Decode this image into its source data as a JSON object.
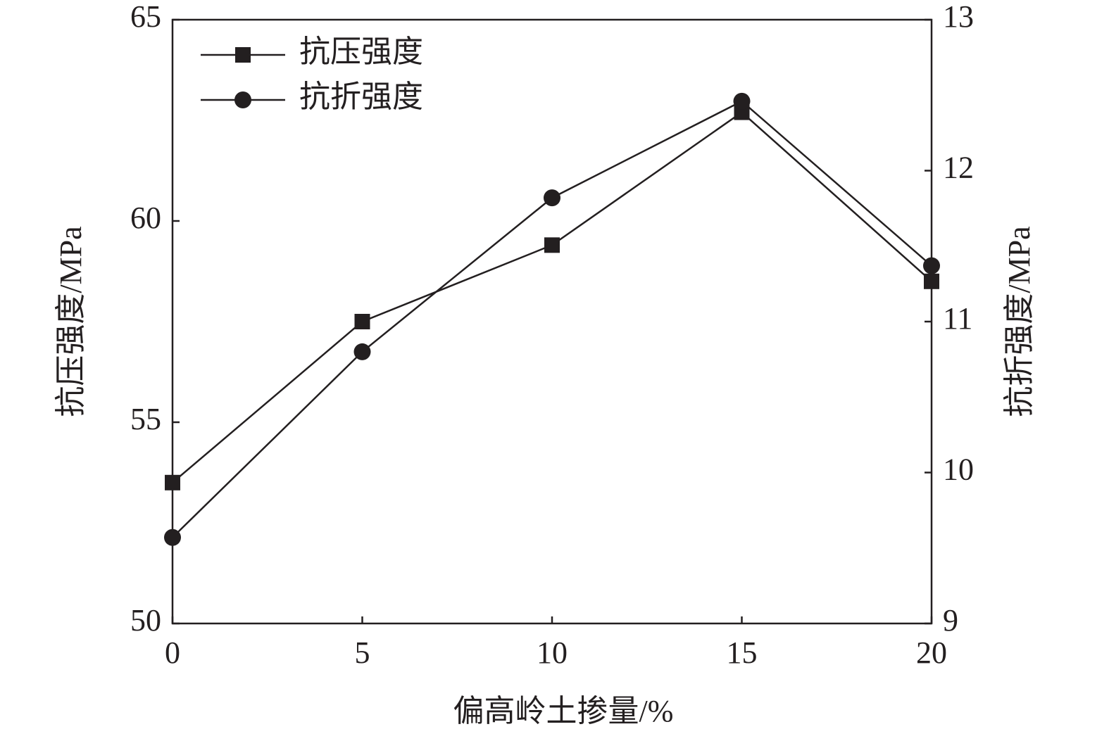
{
  "chart_data": {
    "type": "line",
    "x_label": "偏高岭土掺量/%",
    "y_label": "抗压强度/MPa",
    "y2_label": "抗折强度/MPa",
    "x": [
      0,
      5,
      10,
      15,
      20
    ],
    "xlim": [
      0,
      20
    ],
    "xticks": [
      0,
      5,
      10,
      15,
      20
    ],
    "ylim": [
      50,
      65
    ],
    "yticks": [
      50,
      55,
      60,
      65
    ],
    "y2lim": [
      9,
      13
    ],
    "y2ticks": [
      9,
      10,
      11,
      12,
      13
    ],
    "legend": "upper left",
    "series": [
      {
        "name": "抗压强度",
        "color": "#231f20",
        "marker": "square",
        "values": [
          53.5,
          57.5,
          59.4,
          62.7,
          58.5
        ]
      },
      {
        "name": "抗折强度",
        "color": "#231f20",
        "marker": "circle",
        "axis": "y2",
        "values": [
          9.57,
          10.8,
          11.82,
          12.46,
          11.37
        ]
      }
    ]
  }
}
